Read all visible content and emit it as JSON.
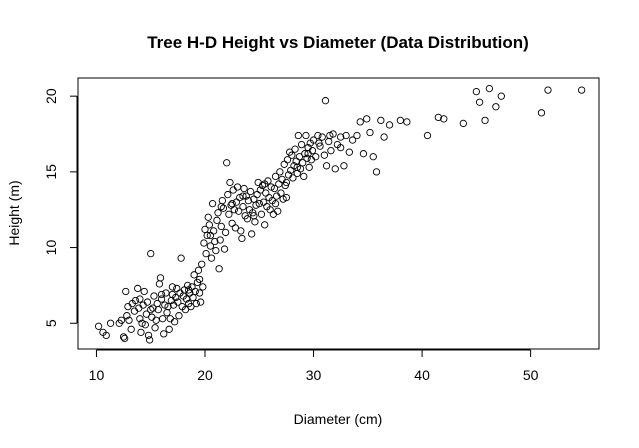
{
  "chart_data": {
    "type": "scatter",
    "title": "Tree H-D Height vs Diameter (Data Distribution)",
    "xlabel": "Diameter (cm)",
    "ylabel": "Height (m)",
    "xlim": [
      8.3,
      56.3
    ],
    "ylim": [
      3.3,
      21.2
    ],
    "xticks": [
      10,
      20,
      30,
      40,
      50
    ],
    "yticks": [
      5,
      10,
      15,
      20
    ],
    "grid": false,
    "legend": "none",
    "point_color": "#000000",
    "points": [
      [
        10.2,
        4.8
      ],
      [
        10.6,
        4.4
      ],
      [
        10.9,
        4.2
      ],
      [
        11.3,
        5.0
      ],
      [
        12.1,
        5.0
      ],
      [
        12.3,
        5.2
      ],
      [
        12.5,
        4.1
      ],
      [
        12.6,
        4.0
      ],
      [
        12.8,
        5.5
      ],
      [
        12.9,
        6.1
      ],
      [
        12.7,
        7.1
      ],
      [
        13.0,
        5.2
      ],
      [
        13.2,
        4.6
      ],
      [
        13.3,
        6.3
      ],
      [
        13.5,
        5.8
      ],
      [
        13.6,
        6.5
      ],
      [
        13.8,
        7.3
      ],
      [
        13.9,
        6.0
      ],
      [
        14.0,
        5.3
      ],
      [
        14.1,
        4.4
      ],
      [
        14.2,
        5.0
      ],
      [
        14.3,
        6.2
      ],
      [
        14.4,
        7.1
      ],
      [
        14.5,
        4.9
      ],
      [
        14.6,
        5.6
      ],
      [
        14.7,
        6.4
      ],
      [
        14.8,
        4.2
      ],
      [
        14.9,
        3.9
      ],
      [
        15.0,
        9.6
      ],
      [
        15.1,
        5.4
      ],
      [
        15.2,
        6.0
      ],
      [
        15.3,
        6.8
      ],
      [
        15.4,
        4.7
      ],
      [
        15.5,
        5.2
      ],
      [
        15.6,
        6.3
      ],
      [
        15.7,
        5.9
      ],
      [
        15.8,
        7.6
      ],
      [
        15.9,
        8.0
      ],
      [
        16.0,
        6.6
      ],
      [
        16.1,
        5.3
      ],
      [
        16.2,
        4.3
      ],
      [
        16.3,
        6.2
      ],
      [
        16.4,
        7.0
      ],
      [
        16.5,
        5.7
      ],
      [
        16.6,
        6.1
      ],
      [
        16.7,
        4.6
      ],
      [
        16.8,
        5.3
      ],
      [
        16.9,
        6.5
      ],
      [
        17.0,
        6.9
      ],
      [
        17.1,
        6.2
      ],
      [
        17.2,
        5.1
      ],
      [
        17.3,
        6.7
      ],
      [
        17.4,
        7.3
      ],
      [
        17.5,
        6.4
      ],
      [
        17.6,
        5.5
      ],
      [
        17.7,
        7.0
      ],
      [
        17.8,
        9.3
      ],
      [
        17.9,
        6.1
      ],
      [
        18.0,
        6.8
      ],
      [
        18.1,
        7.2
      ],
      [
        18.2,
        5.9
      ],
      [
        18.3,
        6.6
      ],
      [
        18.4,
        7.5
      ],
      [
        18.5,
        6.3
      ],
      [
        18.6,
        7.0
      ],
      [
        18.7,
        6.1
      ],
      [
        18.8,
        7.4
      ],
      [
        18.9,
        6.7
      ],
      [
        19.0,
        8.2
      ],
      [
        19.1,
        7.1
      ],
      [
        19.2,
        6.3
      ],
      [
        19.3,
        7.7
      ],
      [
        19.4,
        8.5
      ],
      [
        19.5,
        7.0
      ],
      [
        19.6,
        6.4
      ],
      [
        19.7,
        8.9
      ],
      [
        19.8,
        7.4
      ],
      [
        19.9,
        10.3
      ],
      [
        20.0,
        11.2
      ],
      [
        20.1,
        9.6
      ],
      [
        20.2,
        10.8
      ],
      [
        20.3,
        12.0
      ],
      [
        20.4,
        11.5
      ],
      [
        20.5,
        10.1
      ],
      [
        20.6,
        9.3
      ],
      [
        20.7,
        12.9
      ],
      [
        20.8,
        11.1
      ],
      [
        20.9,
        10.4
      ],
      [
        21.0,
        9.8
      ],
      [
        21.1,
        11.8
      ],
      [
        21.2,
        12.3
      ],
      [
        21.3,
        8.6
      ],
      [
        21.4,
        10.5
      ],
      [
        21.5,
        11.4
      ],
      [
        21.6,
        13.1
      ],
      [
        21.7,
        12.6
      ],
      [
        21.8,
        9.9
      ],
      [
        21.9,
        11.0
      ],
      [
        22.0,
        15.6
      ],
      [
        22.1,
        13.5
      ],
      [
        22.2,
        12.2
      ],
      [
        22.3,
        14.3
      ],
      [
        22.4,
        12.8
      ],
      [
        22.5,
        11.6
      ],
      [
        22.6,
        13.8
      ],
      [
        22.7,
        12.5
      ],
      [
        22.8,
        11.3
      ],
      [
        22.9,
        13.0
      ],
      [
        23.0,
        14.0
      ],
      [
        23.1,
        12.4
      ],
      [
        23.2,
        13.3
      ],
      [
        23.3,
        11.1
      ],
      [
        23.4,
        10.6
      ],
      [
        23.5,
        12.7
      ],
      [
        23.6,
        13.9
      ],
      [
        23.7,
        12.1
      ],
      [
        23.8,
        13.4
      ],
      [
        23.9,
        11.9
      ],
      [
        24.0,
        13.1
      ],
      [
        24.1,
        12.5
      ],
      [
        24.2,
        13.7
      ],
      [
        24.3,
        10.9
      ],
      [
        24.4,
        12.3
      ],
      [
        24.5,
        13.2
      ],
      [
        24.6,
        11.7
      ],
      [
        24.7,
        12.8
      ],
      [
        24.8,
        13.5
      ],
      [
        24.9,
        14.3
      ],
      [
        25.0,
        12.9
      ],
      [
        25.1,
        13.8
      ],
      [
        25.2,
        12.2
      ],
      [
        25.3,
        14.1
      ],
      [
        25.4,
        13.0
      ],
      [
        25.5,
        11.5
      ],
      [
        25.6,
        13.6
      ],
      [
        25.7,
        12.7
      ],
      [
        25.8,
        14.4
      ],
      [
        25.9,
        13.3
      ],
      [
        26.0,
        12.5
      ],
      [
        26.1,
        14.0
      ],
      [
        26.2,
        13.1
      ],
      [
        26.3,
        12.2
      ],
      [
        26.4,
        13.9
      ],
      [
        26.5,
        14.7
      ],
      [
        26.6,
        13.4
      ],
      [
        26.7,
        12.4
      ],
      [
        26.8,
        14.2
      ],
      [
        26.9,
        15.0
      ],
      [
        27.0,
        13.6
      ],
      [
        27.1,
        14.5
      ],
      [
        27.2,
        13.2
      ],
      [
        27.3,
        15.5
      ],
      [
        27.4,
        14.1
      ],
      [
        27.5,
        13.3
      ],
      [
        27.6,
        15.8
      ],
      [
        27.7,
        14.8
      ],
      [
        27.8,
        16.3
      ],
      [
        27.9,
        15.1
      ],
      [
        28.0,
        16.1
      ],
      [
        28.1,
        14.6
      ],
      [
        28.2,
        15.4
      ],
      [
        28.3,
        16.5
      ],
      [
        28.4,
        15.7
      ],
      [
        28.5,
        14.9
      ],
      [
        28.6,
        17.4
      ],
      [
        28.7,
        16.0
      ],
      [
        28.8,
        15.2
      ],
      [
        28.9,
        16.8
      ],
      [
        29.0,
        15.6
      ],
      [
        29.1,
        14.7
      ],
      [
        29.2,
        16.2
      ],
      [
        29.3,
        17.4
      ],
      [
        29.4,
        15.9
      ],
      [
        29.5,
        16.6
      ],
      [
        29.6,
        15.3
      ],
      [
        29.7,
        16.9
      ],
      [
        29.8,
        15.8
      ],
      [
        29.9,
        16.4
      ],
      [
        30.0,
        17.1
      ],
      [
        30.2,
        16.0
      ],
      [
        30.4,
        17.4
      ],
      [
        30.6,
        16.7
      ],
      [
        30.8,
        17.3
      ],
      [
        31.0,
        16.1
      ],
      [
        31.1,
        19.7
      ],
      [
        31.2,
        15.4
      ],
      [
        31.4,
        17.0
      ],
      [
        31.6,
        16.4
      ],
      [
        31.8,
        17.5
      ],
      [
        32.0,
        15.2
      ],
      [
        32.2,
        16.8
      ],
      [
        32.5,
        17.3
      ],
      [
        32.8,
        15.4
      ],
      [
        33.0,
        17.4
      ],
      [
        33.3,
        16.3
      ],
      [
        33.6,
        17.1
      ],
      [
        34.0,
        17.4
      ],
      [
        34.3,
        18.3
      ],
      [
        34.6,
        16.2
      ],
      [
        34.9,
        18.5
      ],
      [
        35.2,
        17.6
      ],
      [
        35.5,
        16.0
      ],
      [
        35.8,
        15.0
      ],
      [
        36.2,
        18.4
      ],
      [
        36.5,
        17.3
      ],
      [
        37.0,
        18.1
      ],
      [
        38.0,
        18.4
      ],
      [
        38.6,
        18.3
      ],
      [
        40.5,
        17.4
      ],
      [
        41.5,
        18.6
      ],
      [
        42.0,
        18.5
      ],
      [
        43.8,
        18.2
      ],
      [
        45.0,
        20.3
      ],
      [
        45.3,
        19.6
      ],
      [
        45.8,
        18.4
      ],
      [
        46.2,
        20.5
      ],
      [
        46.8,
        19.3
      ],
      [
        47.3,
        20.0
      ],
      [
        51.0,
        18.9
      ],
      [
        51.6,
        20.4
      ],
      [
        54.7,
        20.4
      ],
      [
        14.0,
        6.6
      ],
      [
        15.0,
        5.9
      ],
      [
        16.0,
        6.9
      ],
      [
        17.0,
        7.4
      ],
      [
        18.5,
        7.2
      ],
      [
        19.5,
        7.9
      ],
      [
        20.5,
        10.8
      ],
      [
        21.5,
        12.7
      ],
      [
        22.5,
        12.9
      ],
      [
        23.5,
        13.4
      ],
      [
        24.5,
        12.1
      ],
      [
        25.5,
        14.2
      ],
      [
        26.5,
        12.9
      ],
      [
        27.5,
        14.3
      ],
      [
        28.5,
        15.3
      ],
      [
        29.5,
        16.2
      ],
      [
        30.5,
        16.9
      ],
      [
        31.5,
        17.4
      ],
      [
        32.5,
        16.6
      ]
    ]
  }
}
